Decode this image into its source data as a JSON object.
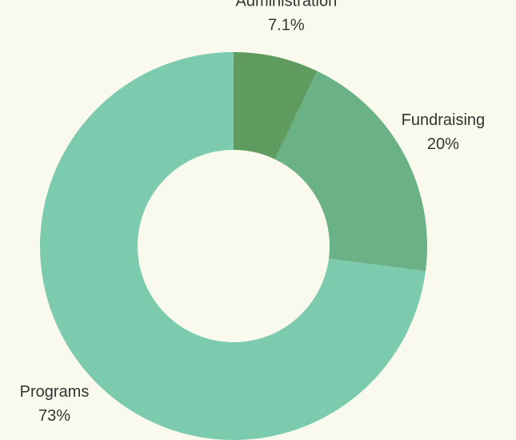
{
  "chart_data": {
    "type": "donut",
    "categories": [
      "Administration",
      "Fundraising",
      "Programs"
    ],
    "values": [
      7.1,
      20,
      73
    ],
    "value_labels": [
      "7.1%",
      "20%",
      "73%"
    ],
    "colors": [
      "#5f9a5e",
      "#6ab186",
      "#7dcbae"
    ]
  }
}
